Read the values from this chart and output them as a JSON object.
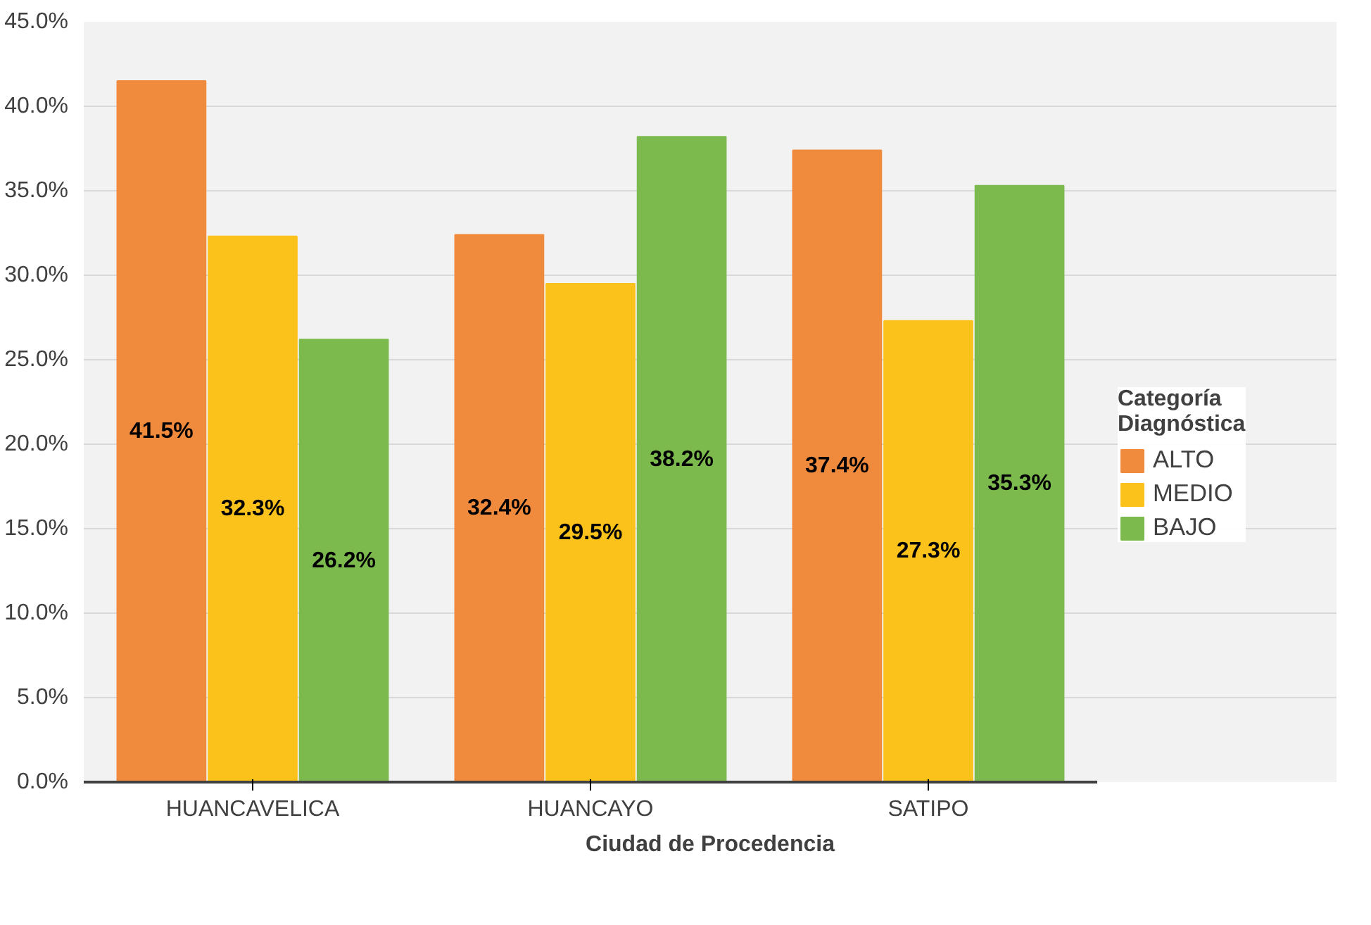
{
  "chart_data": {
    "type": "bar",
    "xlabel": "Ciudad de Procedencia",
    "legend_title": "Categoría Diagnóstica",
    "categories": [
      "HUANCAVELICA",
      "HUANCAYO",
      "SATIPO"
    ],
    "series": [
      {
        "name": "ALTO",
        "color": "#f08a3c",
        "values": [
          41.5,
          32.4,
          37.4
        ],
        "value_labels": [
          "41.5%",
          "32.4%",
          "37.4%"
        ]
      },
      {
        "name": "MEDIO",
        "color": "#fcc21c",
        "values": [
          32.3,
          29.5,
          27.3
        ],
        "value_labels": [
          "32.3%",
          "29.5%",
          "27.3%"
        ]
      },
      {
        "name": "BAJO",
        "color": "#7cba4e",
        "values": [
          26.2,
          38.2,
          35.3
        ],
        "value_labels": [
          "26.2%",
          "38.2%",
          "35.3%"
        ]
      }
    ],
    "ylim": [
      0,
      45
    ],
    "yticks": [
      {
        "value": 0,
        "label": "0.0%"
      },
      {
        "value": 5,
        "label": "5.0%"
      },
      {
        "value": 10,
        "label": "10.0%"
      },
      {
        "value": 15,
        "label": "15.0%"
      },
      {
        "value": 20,
        "label": "20.0%"
      },
      {
        "value": 25,
        "label": "25.0%"
      },
      {
        "value": 30,
        "label": "30.0%"
      },
      {
        "value": 35,
        "label": "35.0%"
      },
      {
        "value": 40,
        "label": "40.0%"
      },
      {
        "value": 45,
        "label": "45.0%"
      }
    ],
    "grid": "y",
    "legend": "right"
  }
}
